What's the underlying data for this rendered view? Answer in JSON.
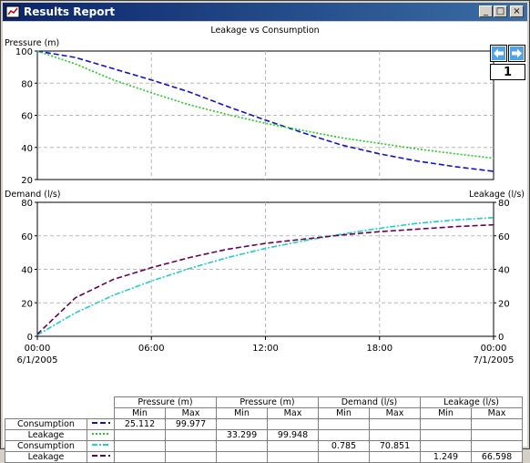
{
  "window": {
    "title": "Results Report",
    "buttons": {
      "minimize": "_",
      "maximize": "□",
      "close": "×"
    }
  },
  "nav": {
    "page": "1",
    "prev_icon": "arrow-left-icon",
    "next_icon": "arrow-right-icon"
  },
  "colors": {
    "titlebar": "#0a246a",
    "consumption_pressure": "#1010d0",
    "leakage_pressure": "#22cc22",
    "consumption_demand": "#20cccc",
    "leakage_leakage": "#660055"
  },
  "chart_data": [
    {
      "type": "line",
      "title": "Leakage vs Consumption",
      "ylabel": "Pressure (m)",
      "ylim": [
        20,
        100
      ],
      "yticks": [
        "20",
        "40",
        "60",
        "80",
        "100"
      ],
      "grid": true,
      "x": [
        0,
        2,
        4,
        6,
        8,
        10,
        12,
        14,
        16,
        18,
        20,
        22,
        24
      ],
      "series": [
        {
          "name": "Pressure (m)",
          "row": "Consumption",
          "values": [
            99.977,
            96,
            89,
            82,
            74.5,
            65.5,
            57,
            49,
            41.5,
            36,
            31.5,
            28,
            25.112
          ]
        },
        {
          "name": "Pressure (m)",
          "row": "Leakage",
          "values": [
            99.948,
            92,
            82,
            74,
            66.5,
            60.5,
            55,
            50.5,
            46,
            42.5,
            39,
            36,
            33.299
          ]
        }
      ]
    },
    {
      "type": "line",
      "ylabel": "Demand (l/s)",
      "y2label": "Leakage (l/s)",
      "ylim": [
        0,
        80
      ],
      "yticks": [
        "0",
        "20",
        "40",
        "60",
        "80"
      ],
      "xticks": [
        {
          "time": "00:00",
          "date": "6/1/2005"
        },
        {
          "time": "06:00",
          "date": ""
        },
        {
          "time": "12:00",
          "date": ""
        },
        {
          "time": "18:00",
          "date": ""
        },
        {
          "time": "00:00",
          "date": "7/1/2005"
        }
      ],
      "grid": true,
      "x": [
        0,
        2,
        4,
        6,
        8,
        10,
        12,
        14,
        16,
        18,
        20,
        22,
        24
      ],
      "series": [
        {
          "name": "Demand (l/s)",
          "row": "Consumption",
          "values": [
            0.785,
            14,
            24.5,
            33,
            40.5,
            47,
            52.5,
            57,
            61,
            64.5,
            67.5,
            69.5,
            70.851
          ]
        },
        {
          "name": "Leakage (l/s)",
          "row": "Leakage",
          "values": [
            1.249,
            23,
            34,
            41,
            47,
            52,
            55.5,
            58,
            60.5,
            62.5,
            64,
            65.5,
            66.598
          ]
        }
      ]
    }
  ],
  "legend": {
    "groups": [
      "Pressure (m)",
      "Pressure (m)",
      "Demand (l/s)",
      "Leakage (l/s)"
    ],
    "subheaders": [
      "Min",
      "Max"
    ],
    "rows": [
      {
        "label": "Consumption",
        "swatch": "consumption_pressure",
        "style": "dash",
        "cells": [
          "25.112",
          "99.977",
          "",
          "",
          "",
          "",
          "",
          ""
        ]
      },
      {
        "label": "Leakage",
        "swatch": "leakage_pressure",
        "style": "dot",
        "cells": [
          "",
          "",
          "33.299",
          "99.948",
          "",
          "",
          "",
          ""
        ]
      },
      {
        "label": "Consumption",
        "swatch": "consumption_demand",
        "style": "dashdot",
        "cells": [
          "",
          "",
          "",
          "",
          "0.785",
          "70.851",
          "",
          ""
        ]
      },
      {
        "label": "Leakage",
        "swatch": "leakage_leakage",
        "style": "dash",
        "cells": [
          "",
          "",
          "",
          "",
          "",
          "",
          "1.249",
          "66.598"
        ]
      }
    ]
  }
}
